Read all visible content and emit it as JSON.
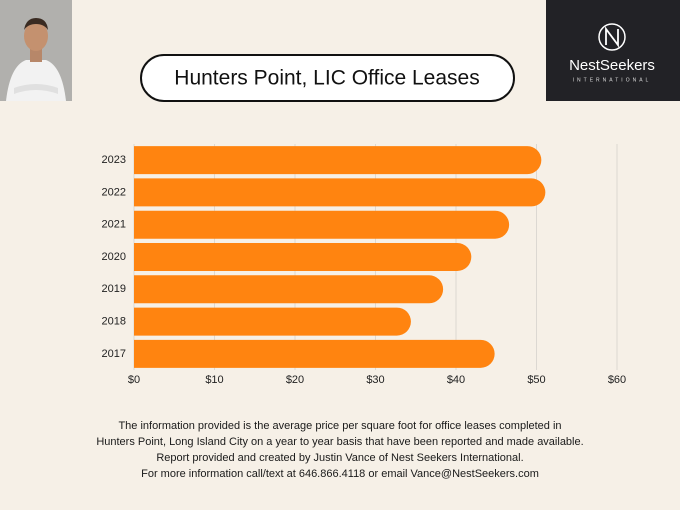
{
  "logo": {
    "name": "NestSeekers",
    "tagline": "INTERNATIONAL"
  },
  "chart_data": {
    "type": "bar",
    "orientation": "horizontal",
    "title": "Hunters Point, LIC Office Leases",
    "categories": [
      "2023",
      "2022",
      "2021",
      "2020",
      "2019",
      "2018",
      "2017"
    ],
    "values": [
      50.6,
      51.1,
      46.6,
      41.9,
      38.4,
      34.4,
      44.8
    ],
    "color": "#ff8410",
    "xlim": [
      0,
      60
    ],
    "xticks": [
      {
        "value": 0,
        "label": "$0"
      },
      {
        "value": 10,
        "label": "$10"
      },
      {
        "value": 20,
        "label": "$20"
      },
      {
        "value": 30,
        "label": "$30"
      },
      {
        "value": 40,
        "label": "$40"
      },
      {
        "value": 50,
        "label": "$50"
      },
      {
        "value": 60,
        "label": "$60"
      }
    ],
    "grid": true
  },
  "footer": [
    "The information provided is the average price per square foot for office leases completed in",
    "Hunters Point, Long Island City on a year to year basis that have been reported and made available.",
    "Report provided and created by Justin Vance of Nest Seekers International.",
    "For more information call/text at 646.866.4118 or email Vance@NestSeekers.com"
  ]
}
